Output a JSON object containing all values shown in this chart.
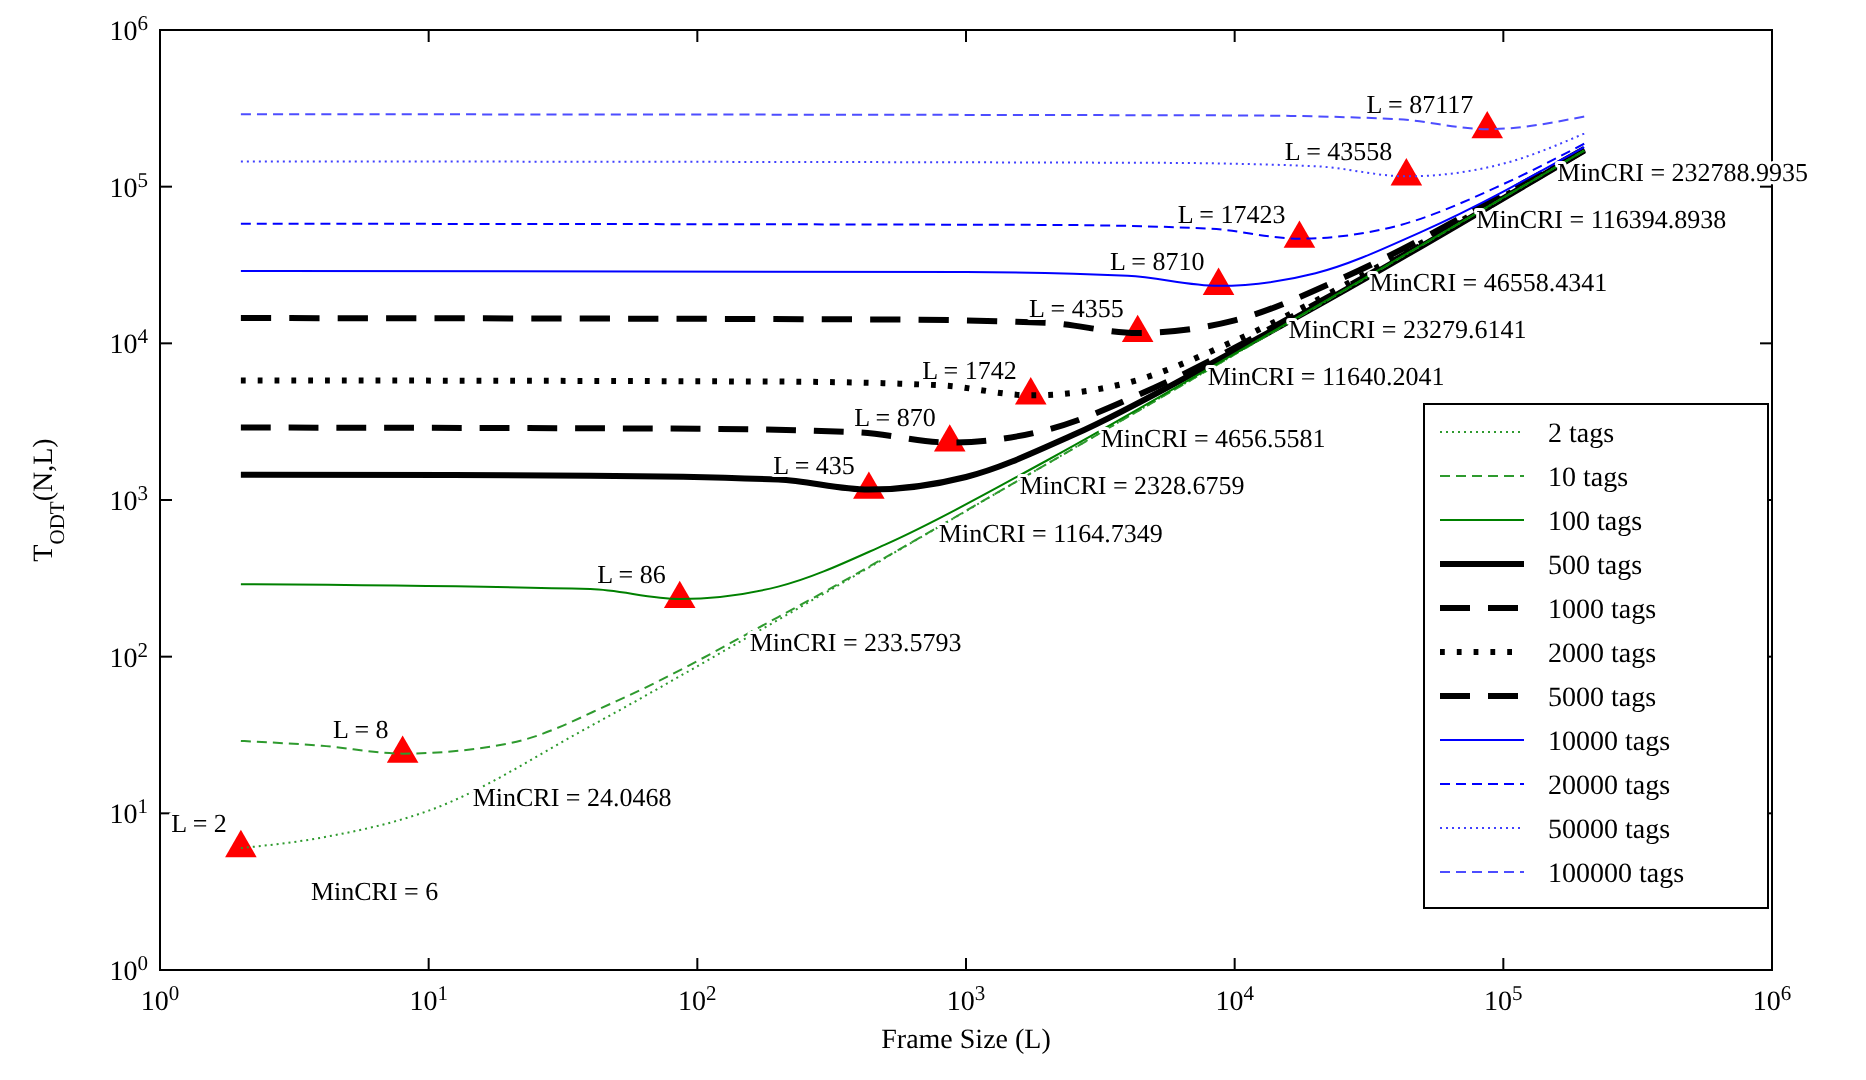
{
  "chart_data": {
    "type": "line",
    "xlabel": "Frame Size (L)",
    "ylabel": "T$_{ODT}$(N,L)",
    "log": "xy",
    "grid": false,
    "legend": "right",
    "xlim": [
      1,
      1000000
    ],
    "ylim": [
      1,
      1000000
    ],
    "xticks": [
      {
        "value": 1,
        "label": "10$^{0}$"
      },
      {
        "value": 10,
        "label": "10$^{1}$"
      },
      {
        "value": 100,
        "label": "10$^{2}$"
      },
      {
        "value": 1000,
        "label": "10$^{3}$"
      },
      {
        "value": 10000,
        "label": "10$^{4}$"
      },
      {
        "value": 100000,
        "label": "10$^{5}$"
      },
      {
        "value": 1000000,
        "label": "10$^{6}$"
      }
    ],
    "yticks": [
      {
        "value": 1,
        "label": "10$^{0}$"
      },
      {
        "value": 10,
        "label": "10$^{1}$"
      },
      {
        "value": 100,
        "label": "10$^{2}$"
      },
      {
        "value": 1000,
        "label": "10$^{3}$"
      },
      {
        "value": 10000,
        "label": "10$^{4}$"
      },
      {
        "value": 100000,
        "label": "10$^{5}$"
      },
      {
        "value": 1000000,
        "label": "10$^{6}$"
      }
    ],
    "series": [
      {
        "name": "2 tags",
        "color": "#2e9a2e",
        "line_style": "dotted",
        "x": [
          2,
          4,
          10,
          40,
          200,
          2000,
          20000,
          200000
        ],
        "values": [
          6,
          7,
          10.4,
          36,
          172,
          1700,
          17000,
          170000
        ]
      },
      {
        "name": "10 tags",
        "color": "#2e9a2e",
        "line_style": "dashed",
        "x": [
          2,
          4,
          8,
          20,
          50,
          200,
          2000,
          20000,
          200000
        ],
        "values": [
          29,
          27,
          24.0468,
          28,
          52,
          179,
          1700,
          17000,
          170000
        ]
      },
      {
        "name": "100 tags",
        "color": "#008000",
        "line_style": "solid",
        "x": [
          2,
          40,
          86,
          200,
          500,
          2000,
          10000,
          200000
        ],
        "values": [
          290,
          270,
          233.5793,
          280,
          519,
          1787,
          8585,
          170000
        ]
      },
      {
        "name": "500 tags",
        "color": "#000000",
        "line_style": "solid",
        "x": [
          2,
          40,
          200,
          435,
          1000,
          2500,
          10000,
          200000
        ],
        "values": [
          1450,
          1430,
          1350,
          1164.7349,
          1402,
          2595,
          8935,
          170000
        ]
      },
      {
        "name": "1000 tags",
        "color": "#000000",
        "line_style": "dashed",
        "x": [
          2,
          100,
          400,
          870,
          2000,
          5000,
          20000,
          200000
        ],
        "values": [
          2900,
          2850,
          2700,
          2328.6759,
          2803,
          5190,
          17870,
          171000
        ]
      },
      {
        "name": "2000 tags",
        "color": "#000000",
        "line_style": "dotted",
        "x": [
          2,
          200,
          800,
          1742,
          4000,
          10000,
          40000,
          200000
        ],
        "values": [
          5800,
          5700,
          5400,
          4656.5581,
          5606,
          10380,
          35740,
          172000
        ]
      },
      {
        "name": "5000 tags",
        "color": "#000000",
        "line_style": "dashed",
        "x": [
          2,
          500,
          2000,
          4355,
          10000,
          25000,
          100000,
          200000
        ],
        "values": [
          14500,
          14200,
          13500,
          11640.2041,
          14015,
          25950,
          89350,
          174300
        ]
      },
      {
        "name": "10000 tags",
        "color": "#0000ff",
        "line_style": "solid",
        "x": [
          2,
          1000,
          4000,
          8710,
          20000,
          50000,
          200000
        ],
        "values": [
          29000,
          28500,
          27000,
          23279.6141,
          28030,
          51900,
          178700
        ]
      },
      {
        "name": "20000 tags",
        "color": "#0000ff",
        "line_style": "dashed",
        "x": [
          2,
          2000,
          8000,
          17423,
          40000,
          100000,
          200000
        ],
        "values": [
          58000,
          57000,
          54000,
          46558.4341,
          56060,
          103800,
          187900
        ]
      },
      {
        "name": "50000 tags",
        "color": "#4040ff",
        "line_style": "dotted",
        "x": [
          2,
          5000,
          20000,
          43558,
          100000,
          200000
        ],
        "values": [
          145000,
          142000,
          135000,
          116394.8938,
          140200,
          218300
        ]
      },
      {
        "name": "100000 tags",
        "color": "#4d4dff",
        "line_style": "dashed",
        "x": [
          2,
          10000,
          40000,
          87117,
          200000
        ],
        "values": [
          290000,
          285000,
          270000,
          232788.9935,
          280300
        ]
      },
      {
        "type": "scatter",
        "color": "#ff0000",
        "marker": "triangle",
        "x": [
          2,
          8,
          86,
          435,
          870,
          1742,
          4355,
          8710,
          17423,
          43558,
          87117
        ],
        "values": [
          6,
          24.0468,
          233.5793,
          1164.7349,
          2328.6759,
          4656.5581,
          11640.2041,
          23279.6141,
          46558.4341,
          116394.8938,
          232788.9935
        ]
      }
    ],
    "annotations": [
      {
        "text": "L = 2",
        "x": 2,
        "y": 6
      },
      {
        "text": "MinCRI = 6",
        "x": 2,
        "y": 6
      },
      {
        "text": "L = 8",
        "x": 8,
        "y": 24.0468
      },
      {
        "text": "MinCRI = 24.0468",
        "x": 8,
        "y": 24.0468
      },
      {
        "text": "L = 86",
        "x": 86,
        "y": 233.5793
      },
      {
        "text": "MinCRI = 233.5793",
        "x": 86,
        "y": 233.5793
      },
      {
        "text": "L = 435",
        "x": 435,
        "y": 1164.7349
      },
      {
        "text": "MinCRI = 1164.7349",
        "x": 435,
        "y": 1164.7349
      },
      {
        "text": "L = 870",
        "x": 870,
        "y": 2328.6759
      },
      {
        "text": "MinCRI = 2328.6759",
        "x": 870,
        "y": 2328.6759
      },
      {
        "text": "L = 1742",
        "x": 1742,
        "y": 4656.5581
      },
      {
        "text": "MinCRI = 4656.5581",
        "x": 1742,
        "y": 4656.5581
      },
      {
        "text": "L = 4355",
        "x": 4355,
        "y": 11640.2041
      },
      {
        "text": "MinCRI = 11640.2041",
        "x": 4355,
        "y": 11640.2041
      },
      {
        "text": "L = 8710",
        "x": 8710,
        "y": 23279.6141
      },
      {
        "text": "MinCRI = 23279.6141",
        "x": 8710,
        "y": 23279.6141
      },
      {
        "text": "L = 17423",
        "x": 17423,
        "y": 46558.4341
      },
      {
        "text": "MinCRI = 46558.4341",
        "x": 17423,
        "y": 46558.4341
      },
      {
        "text": "L = 43558",
        "x": 43558,
        "y": 116394.8938
      },
      {
        "text": "MinCRI = 116394.8938",
        "x": 43558,
        "y": 116394.8938
      },
      {
        "text": "L = 87117",
        "x": 87117,
        "y": 232788.9935
      },
      {
        "text": "MinCRI = 232788.9935",
        "x": 87117,
        "y": 232788.9935
      }
    ]
  }
}
